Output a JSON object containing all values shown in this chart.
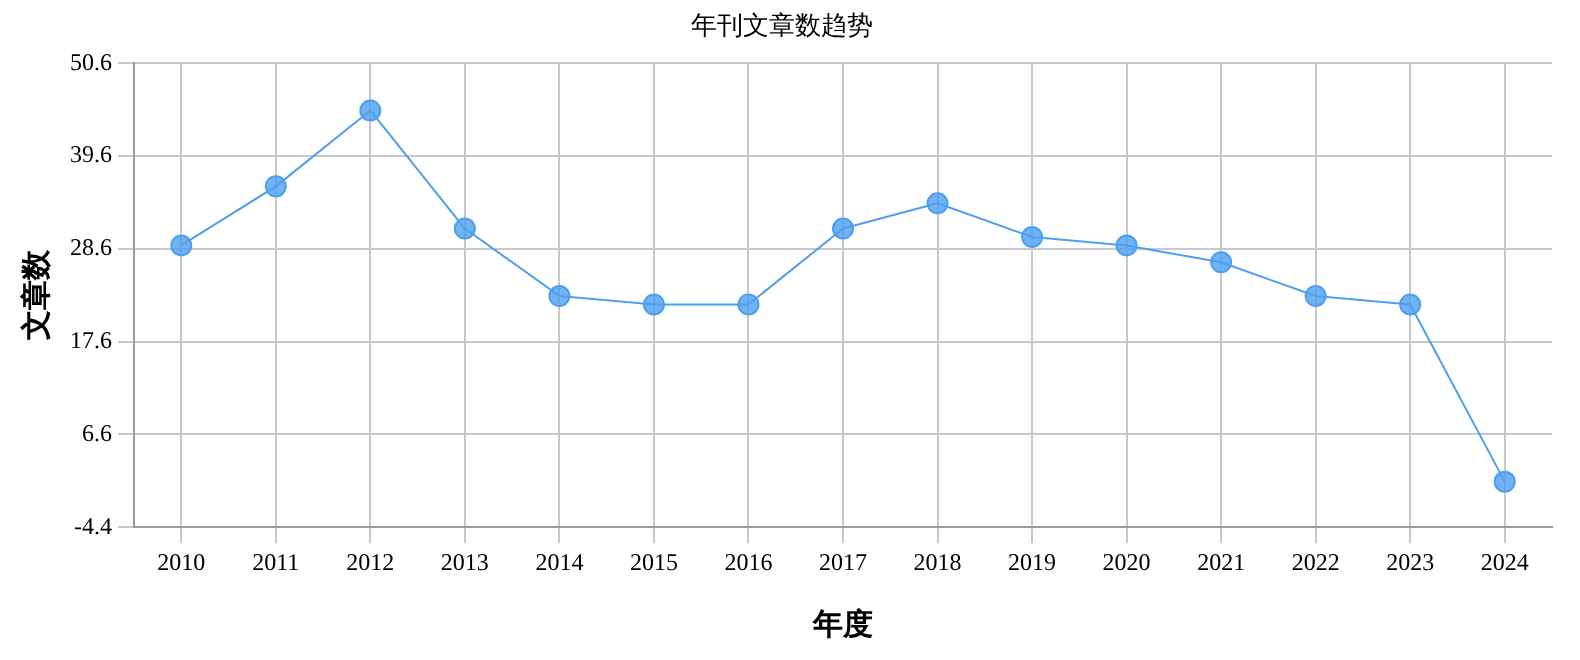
{
  "chart_data": {
    "type": "line",
    "title": "年刊文章数趋势",
    "xlabel": "年度",
    "ylabel": "文章数",
    "categories": [
      "2010",
      "2011",
      "2012",
      "2013",
      "2014",
      "2015",
      "2016",
      "2017",
      "2018",
      "2019",
      "2020",
      "2021",
      "2022",
      "2023",
      "2024"
    ],
    "series": [
      {
        "color": "#4d9ff0",
        "values": [
          29,
          36,
          45,
          31,
          23,
          22,
          22,
          31,
          34,
          30,
          29,
          27,
          23,
          22,
          1
        ]
      }
    ],
    "ylim": [
      -4.4,
      50.6
    ],
    "yticks": [
      -4.4,
      6.6,
      17.6,
      28.6,
      39.6,
      50.6
    ],
    "grid": true,
    "marker": "circle",
    "line_style": "solid",
    "legend": false
  }
}
